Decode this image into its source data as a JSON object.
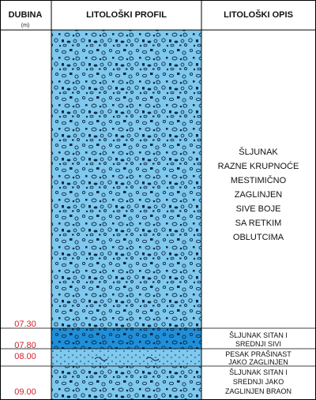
{
  "headers": {
    "depth": "DUBINA",
    "depth_unit": "(m)",
    "profile": "LITOLOŠKI PROFIL",
    "description": "LITOLOŠKI OPIS"
  },
  "depth_marks": [
    "07.30",
    "07.80",
    "08.00",
    "09.00"
  ],
  "layers": [
    {
      "id": "layer-1",
      "color": "#7fc8ee",
      "lines": [
        "ŠLJUNAK",
        "RAZNE KRUPNOĆE",
        "MESTIMIČNO",
        "ZAGLINJEN",
        "SIVE BOJE",
        "SA RETKIM",
        "OBLUTCIMA"
      ]
    },
    {
      "id": "layer-2",
      "color": "#1f8fd9",
      "lines": [
        "ŠLJUNAK SITAN I",
        "SREDNJI SIVI"
      ]
    },
    {
      "id": "layer-3",
      "color": "#7fc8ee",
      "lines": [
        "PESAK PRAŠINAST",
        "JAKO ZAGLINJEN"
      ]
    },
    {
      "id": "layer-4",
      "color": "#7fc8ee",
      "lines": [
        "ŠLJUNAK SITAN I",
        "SREDNJI JAKO",
        "ZAGLINJEN BRAON"
      ]
    }
  ],
  "colors": {
    "grid": "#000000",
    "depth_text": "#d4202a"
  }
}
